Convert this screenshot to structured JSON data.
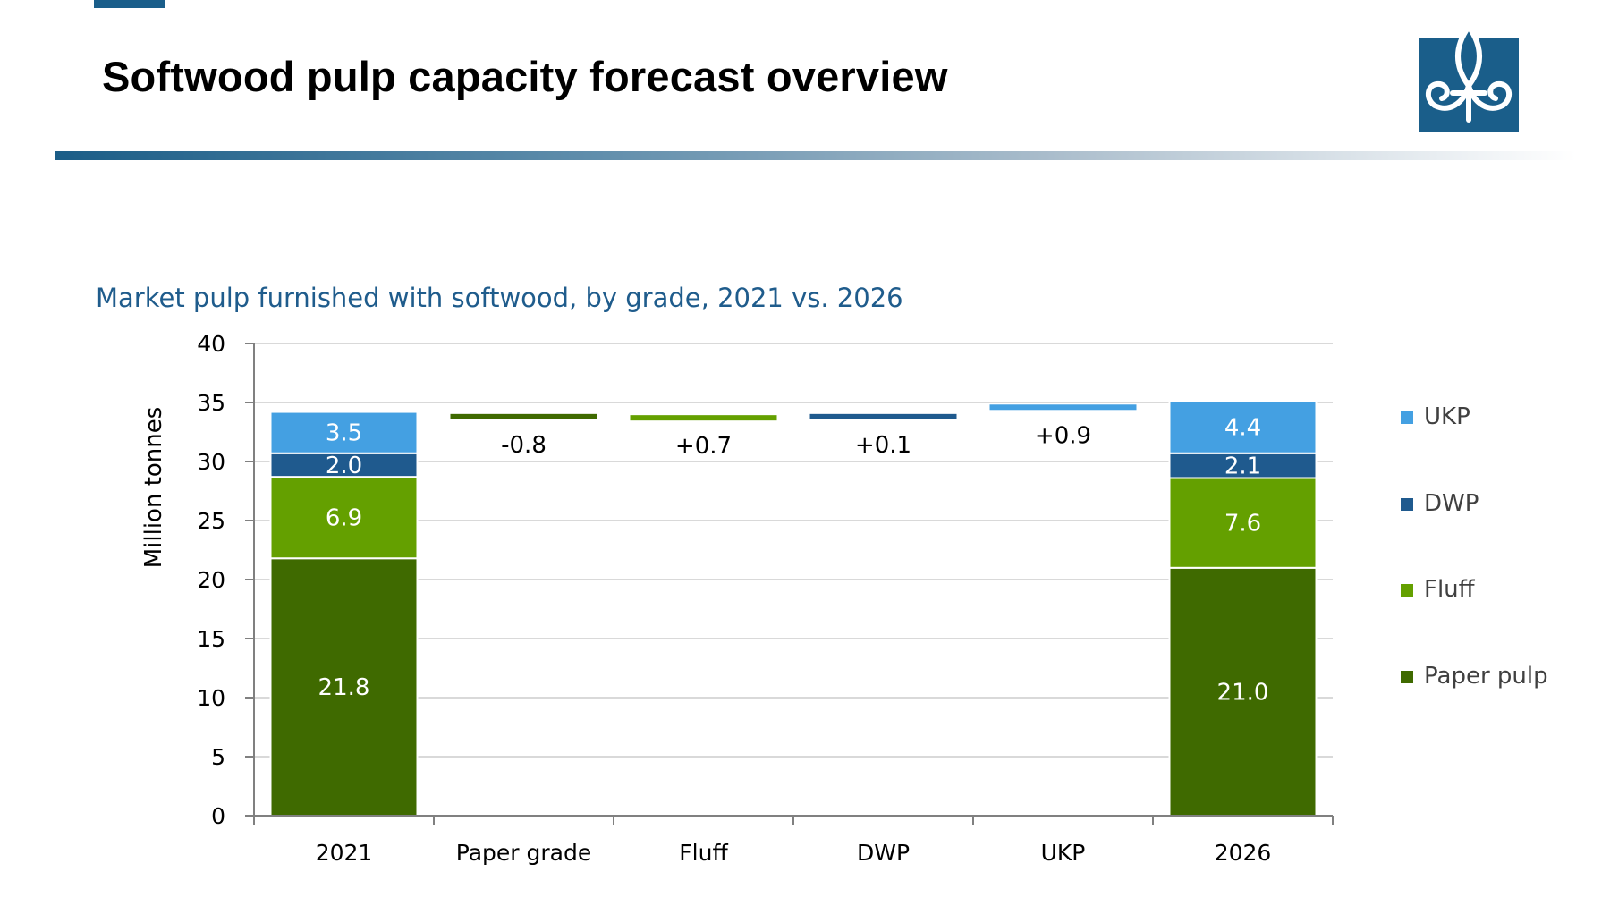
{
  "header": {
    "title": "Softwood pulp capacity forecast overview"
  },
  "logo": {
    "icon": "fleur-de-lis-icon",
    "color": "#1a5e8a"
  },
  "chart_data": {
    "type": "bar",
    "title": "Market pulp furnished with softwood, by grade, 2021 vs. 2026",
    "ylabel": "Million tonnes",
    "xlabel": "",
    "ylim": [
      0,
      40
    ],
    "yticks": [
      0,
      5,
      10,
      15,
      20,
      25,
      30,
      35,
      40
    ],
    "grid": true,
    "legend_position": "right",
    "categories": [
      "2021",
      "Paper grade",
      "Fluff",
      "DWP",
      "UKP",
      "2026"
    ],
    "series": [
      {
        "name": "Paper pulp",
        "color": "#3f6a00",
        "values": [
          21.8,
          null,
          null,
          null,
          null,
          21.0
        ],
        "labels": [
          "21.8",
          "",
          "",
          "",
          "",
          "21.0"
        ]
      },
      {
        "name": "Fluff",
        "color": "#64a000",
        "values": [
          6.9,
          null,
          null,
          null,
          null,
          7.6
        ],
        "labels": [
          "6.9",
          "",
          "",
          "",
          "",
          "7.6"
        ]
      },
      {
        "name": "DWP",
        "color": "#1f5a8e",
        "values": [
          2.0,
          null,
          null,
          null,
          null,
          2.1
        ],
        "labels": [
          "2.0",
          "",
          "",
          "",
          "",
          "2.1"
        ]
      },
      {
        "name": "UKP",
        "color": "#44a0e2",
        "values": [
          3.5,
          null,
          null,
          null,
          null,
          4.4
        ],
        "labels": [
          "3.5",
          "",
          "",
          "",
          "",
          "4.4"
        ]
      }
    ],
    "changes": [
      {
        "category": "Paper grade",
        "value": -0.8,
        "label": "-0.8",
        "level": 33.8,
        "color": "#3f6a00"
      },
      {
        "category": "Fluff",
        "value": 0.7,
        "label": "+0.7",
        "level": 33.7,
        "color": "#64a000"
      },
      {
        "category": "DWP",
        "value": 0.1,
        "label": "+0.1",
        "level": 33.8,
        "color": "#1f5a8e"
      },
      {
        "category": "UKP",
        "value": 0.9,
        "label": "+0.9",
        "level": 34.6,
        "color": "#44a0e2"
      }
    ],
    "legend": [
      "UKP",
      "DWP",
      "Fluff",
      "Paper pulp"
    ]
  }
}
